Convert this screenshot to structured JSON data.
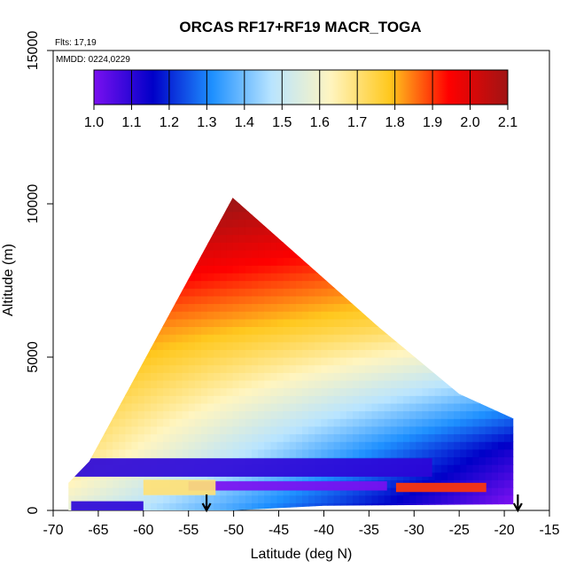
{
  "chart_data": {
    "type": "heatmap",
    "title": "ORCAS RF17+RF19 MACR_TOGA",
    "annotations": {
      "flights": "Flts: 17,19",
      "dates": "MMDD: 0224,0229"
    },
    "xlabel": "Latitude (deg N)",
    "ylabel": "Altitude (m)",
    "xlim": [
      -70,
      -15
    ],
    "ylim": [
      0,
      15000
    ],
    "x_ticks": [
      -70,
      -65,
      -60,
      -55,
      -50,
      -45,
      -40,
      -35,
      -30,
      -25,
      -20,
      -15
    ],
    "y_ticks": [
      0,
      5000,
      10000,
      15000
    ],
    "colorbar": {
      "ticks": [
        "1.0",
        "1.1",
        "1.2",
        "1.3",
        "1.4",
        "1.5",
        "1.6",
        "1.7",
        "1.8",
        "1.9",
        "2.0",
        "2.1"
      ],
      "range": [
        1.0,
        2.1
      ],
      "colors": [
        "#7a10f0",
        "#0000c8",
        "#1e90ff",
        "#b8e4ff",
        "#fff5c0",
        "#ffc81e",
        "#ff0000",
        "#a01414"
      ]
    },
    "envelope": {
      "lower_left_lat": -68.3,
      "peak": {
        "lat": -50.1,
        "alt": 10200
      },
      "right_edge": {
        "lat": -19.0,
        "alt_top": 3000
      }
    },
    "low_level_features": [
      {
        "lat_min": -68,
        "lat_max": -28,
        "alt_min": 1100,
        "alt_max": 1700,
        "value": 1.1
      },
      {
        "lat_min": -55,
        "lat_max": -33,
        "alt_min": 650,
        "alt_max": 950,
        "value": 1.0
      },
      {
        "lat_min": -60,
        "lat_max": -52,
        "alt_min": 500,
        "alt_max": 1000,
        "value": 1.7
      },
      {
        "lat_min": -68,
        "lat_max": -60,
        "alt_min": 0,
        "alt_max": 300,
        "value": 1.1
      },
      {
        "lat_min": -32,
        "lat_max": -22,
        "alt_min": 600,
        "alt_max": 900,
        "value": 1.9
      }
    ],
    "markers": [
      {
        "lat": -53,
        "label": "down-arrow"
      },
      {
        "lat": -18.5,
        "label": "down-arrow"
      }
    ]
  }
}
